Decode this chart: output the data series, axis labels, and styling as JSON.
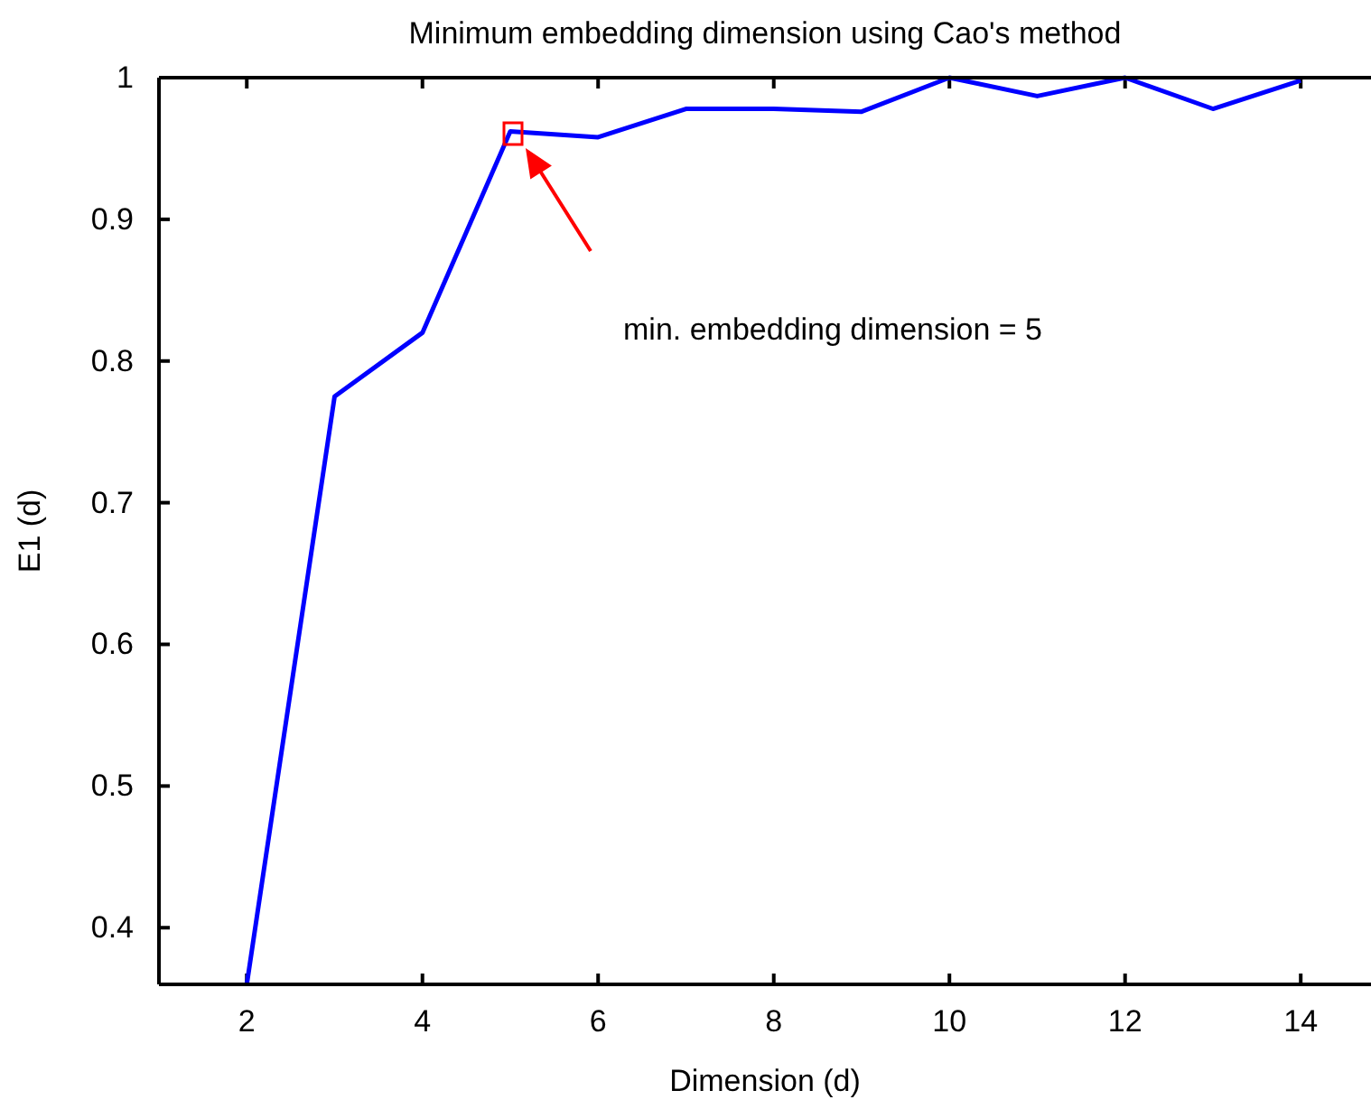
{
  "chart_data": {
    "type": "line",
    "title": "Minimum embedding dimension using Cao's method",
    "xlabel": "Dimension (d)",
    "ylabel": "E1 (d)",
    "x": [
      2,
      3,
      4,
      5,
      6,
      7,
      8,
      9,
      10,
      11,
      12,
      13,
      14
    ],
    "series": [
      {
        "color": "#0000ff",
        "values": [
          0.36,
          0.775,
          0.82,
          0.962,
          0.958,
          0.978,
          0.978,
          0.976,
          1.0,
          0.987,
          1.0,
          0.978,
          0.998
        ]
      }
    ],
    "xlim": [
      1,
      14.8
    ],
    "xticks": [
      2,
      4,
      6,
      8,
      10,
      12,
      14
    ],
    "ylim": [
      0.36,
      1
    ],
    "yticks": [
      0.4,
      0.5,
      0.6,
      0.7,
      0.8,
      0.9,
      1
    ],
    "annotations": [
      "min. embedding dimension = 5"
    ],
    "grid": false,
    "marker": "none",
    "line_style": "solid"
  }
}
